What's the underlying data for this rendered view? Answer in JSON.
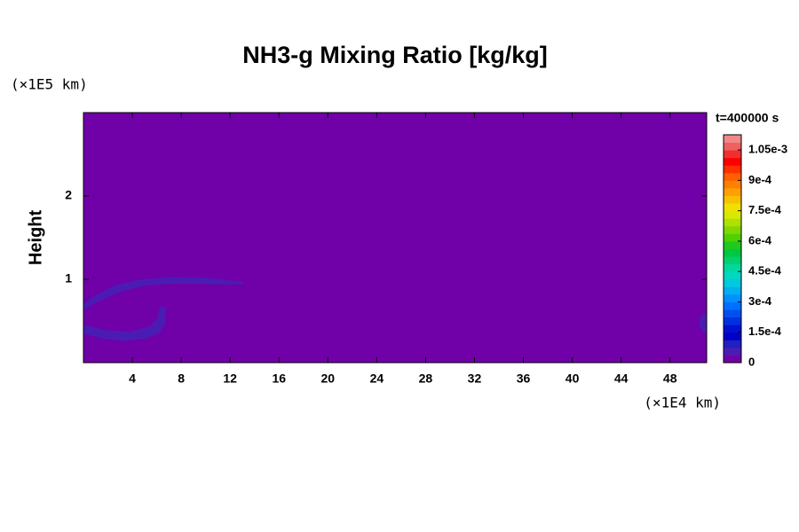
{
  "chart_data": {
    "type": "contour",
    "title": "NH3-g Mixing Ratio [kg/kg]",
    "ylabel": "Height",
    "x_unit_label": "(×1E4 km)",
    "y_unit_label": "(×1E5 km)",
    "annotation": "t=400000 s",
    "xlim": [
      0,
      51
    ],
    "ylim": [
      0,
      3
    ],
    "xticks": [
      4,
      8,
      12,
      16,
      20,
      24,
      28,
      32,
      36,
      40,
      44,
      48
    ],
    "yticks": [
      1,
      2
    ],
    "clim": [
      0,
      0.001125
    ],
    "cticks": [
      0,
      {
        "value": 0.00015,
        "label": "1.5e-4"
      },
      {
        "value": 0.0003,
        "label": "3e-4"
      },
      {
        "value": 0.00045,
        "label": "4.5e-4"
      },
      {
        "value": 0.0006,
        "label": "6e-4"
      },
      {
        "value": 0.00075,
        "label": "7.5e-4"
      },
      {
        "value": 0.0009,
        "label": "9e-4"
      },
      {
        "value": 0.00105,
        "label": "1.05e-3"
      }
    ],
    "colormap": [
      "#7000a8",
      "#4b1cb4",
      "#2020c0",
      "#0000c8",
      "#0010d0",
      "#0030e0",
      "#0050f0",
      "#0070ff",
      "#0090ff",
      "#00b0f0",
      "#00c8e0",
      "#00d8c0",
      "#00d8a0",
      "#00d070",
      "#00c840",
      "#20c820",
      "#50d000",
      "#80d800",
      "#b0e000",
      "#d8e800",
      "#f0e000",
      "#f8c000",
      "#ffa000",
      "#ff8000",
      "#ff6000",
      "#ff3000",
      "#ff0000",
      "#f03030",
      "#f06060",
      "#f08888"
    ],
    "contours": [
      {
        "level": 3.75e-05,
        "x": [
          13.06,
          10.6,
          7.69,
          4.79,
          2.61,
          0.8,
          0,
          0,
          1.02,
          2.98,
          5.15,
          7.69,
          10.6,
          13.06
        ],
        "y": [
          0.97,
          1.01,
          1.03,
          1.0,
          0.93,
          0.79,
          0.7,
          0.63,
          0.72,
          0.85,
          0.93,
          0.95,
          0.94,
          0.94
        ]
      },
      {
        "level": 3.75e-05,
        "x": [
          0,
          0,
          1.52,
          3.34,
          5.15,
          6.24,
          6.68,
          6.75,
          6.24,
          6.02,
          5.37,
          3.7,
          1.89,
          0.44
        ],
        "y": [
          0.46,
          0.35,
          0.29,
          0.26,
          0.29,
          0.36,
          0.47,
          0.66,
          0.67,
          0.52,
          0.43,
          0.37,
          0.39,
          0.44
        ]
      },
      {
        "level": 3.75e-05,
        "x": [
          51,
          50.51,
          50.36,
          50.65,
          51
        ],
        "y": [
          0.61,
          0.55,
          0.46,
          0.38,
          0.35
        ]
      }
    ]
  }
}
